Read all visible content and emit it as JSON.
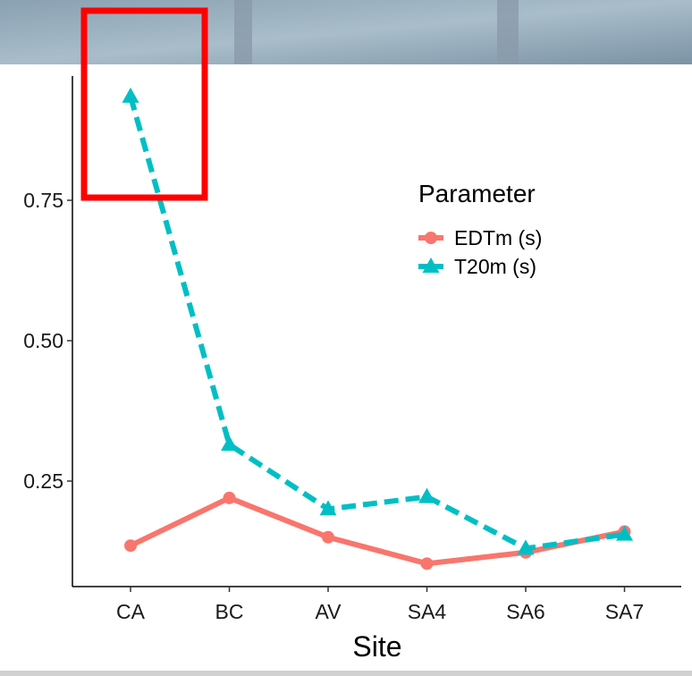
{
  "chart_data": {
    "type": "line",
    "xlabel": "Site",
    "ylabel": "",
    "categories": [
      "CA",
      "BC",
      "AV",
      "SA4",
      "SA6",
      "SA7"
    ],
    "y_ticks": [
      0.25,
      0.5,
      0.75
    ],
    "y_tick_labels": [
      "0.25",
      "0.50",
      "0.75"
    ],
    "ylim": [
      0.08,
      0.97
    ],
    "grid": false,
    "legend": {
      "title": "Parameter",
      "placement": "top-right"
    },
    "series": [
      {
        "name": "EDTm (s)",
        "color": "#F8766D",
        "marker": "circle",
        "line_style": "solid",
        "values": [
          0.135,
          0.22,
          0.15,
          0.103,
          0.123,
          0.16
        ]
      },
      {
        "name": "T20m (s)",
        "color": "#00BFC4",
        "marker": "triangle",
        "line_style": "dashed",
        "values": [
          0.935,
          0.315,
          0.2,
          0.222,
          0.13,
          0.155
        ]
      }
    ]
  },
  "annotation": {
    "color": "#FF0000"
  },
  "banner": {
    "colors": [
      "#7f97a8",
      "#9db3c1",
      "#6d8597"
    ]
  }
}
